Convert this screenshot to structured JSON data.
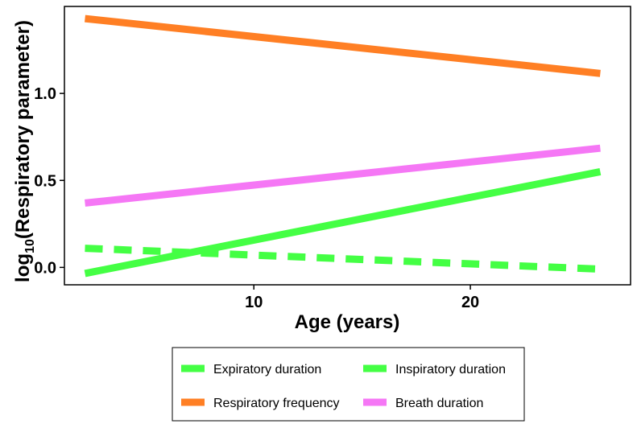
{
  "chart_data": {
    "type": "line",
    "title": "",
    "xlabel": "Age (years)",
    "ylabel": "log10(Respiratory parameter)",
    "ylabel_parts": {
      "prefix": "log",
      "subscript": "10",
      "main": "(Respiratory parameter)"
    },
    "x_ticks": [
      10,
      20
    ],
    "y_ticks": [
      0.0,
      0.5,
      1.0
    ],
    "y_tick_labels": [
      "0.0",
      "0.5",
      "1.0"
    ],
    "xlim": [
      1.25,
      27.4
    ],
    "ylim": [
      -0.1,
      1.5
    ],
    "grid": false,
    "legend_position": "bottom",
    "series": [
      {
        "name": "Expiratory duration",
        "color": "#44FF44",
        "dash": "solid",
        "x": [
          2.2,
          26.0
        ],
        "y": [
          -0.035,
          0.55
        ]
      },
      {
        "name": "Inspiratory duration",
        "color": "#44FF44",
        "dash": "dashed",
        "x": [
          2.2,
          26.0
        ],
        "y": [
          0.11,
          -0.01
        ]
      },
      {
        "name": "Respiratory frequency",
        "color": "#FF7F24",
        "dash": "solid",
        "x": [
          2.2,
          26.0
        ],
        "y": [
          1.43,
          1.115
        ]
      },
      {
        "name": "Breath duration",
        "color": "#F577F5",
        "dash": "solid",
        "x": [
          2.2,
          26.0
        ],
        "y": [
          0.37,
          0.685
        ]
      }
    ]
  }
}
